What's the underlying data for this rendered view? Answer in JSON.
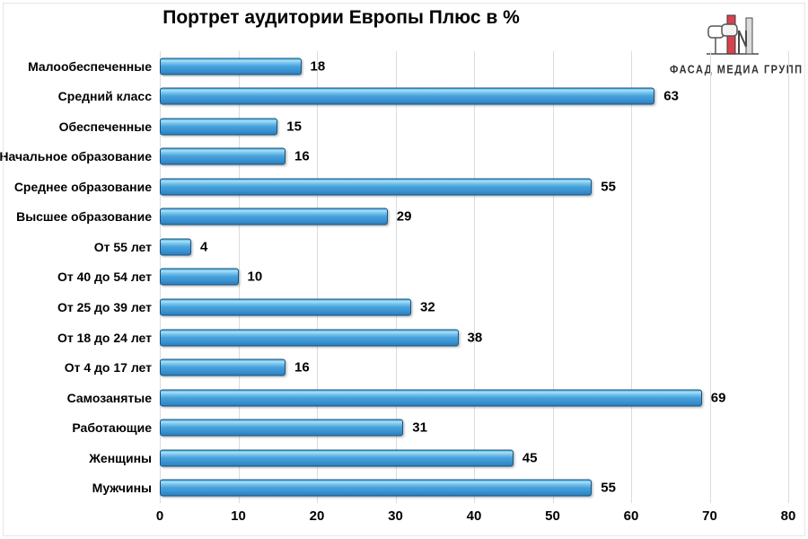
{
  "title": "Портрет аудитории Европы Плюс в %",
  "logo": {
    "text": "ФАСАД МЕДИА ГРУПП",
    "red": "#d84150",
    "gray": "#dcdcdc",
    "outline": "#4a4a4a"
  },
  "chart_data": {
    "type": "bar",
    "orientation": "horizontal",
    "title": "Портрет аудитории Европы Плюс в %",
    "categories": [
      "Малообеспеченные",
      "Средний класс",
      "Обеспеченные",
      "Начальное образование",
      "Среднее образование",
      "Высшее образование",
      "От 55 лет",
      "От 40 до 54 лет",
      "От 25 до 39 лет",
      "От 18 до 24 лет",
      "От 4 до 17 лет",
      "Самозанятые",
      "Работающие",
      "Женщины",
      "Мужчины"
    ],
    "values": [
      18,
      63,
      15,
      16,
      55,
      29,
      4,
      10,
      32,
      38,
      16,
      69,
      31,
      45,
      55
    ],
    "xlim": [
      0,
      80
    ],
    "x_ticks": [
      0,
      10,
      20,
      30,
      40,
      50,
      60,
      70,
      80
    ],
    "grid": true,
    "legend": false,
    "data_labels": true,
    "bar_color": "#3e9ad6",
    "bar_highlight": "#a9e1fa",
    "bar_outline": "#18547f",
    "gridline_color": "#dcdcdc",
    "label_color": "#000000"
  }
}
